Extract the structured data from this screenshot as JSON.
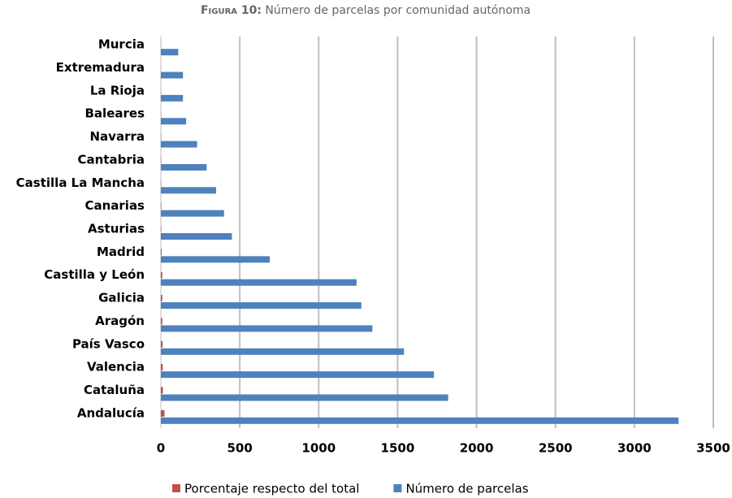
{
  "chart_data": {
    "type": "bar",
    "orientation": "horizontal",
    "title_label": "Figura 10:",
    "title": "Número de parcelas por comunidad autónoma",
    "categories": [
      "Andalucía",
      "Cataluña",
      "Valencia",
      "País Vasco",
      "Aragón",
      "Galicia",
      "Castilla y León",
      "Madrid",
      "Asturias",
      "Canarias",
      "Castilla La Mancha",
      "Cantabria",
      "Navarra",
      "Baleares",
      "La Rioja",
      "Extremadura",
      "Murcia"
    ],
    "series": [
      {
        "name": "Porcentaje respecto del total",
        "color": "#c0504d",
        "values": [
          23,
          13,
          12,
          11,
          9,
          9,
          9,
          5,
          3,
          3,
          2,
          2,
          2,
          1,
          1,
          1,
          1
        ]
      },
      {
        "name": "Número de parcelas",
        "color": "#4f81bd",
        "values": [
          3280,
          1820,
          1730,
          1540,
          1340,
          1270,
          1240,
          690,
          450,
          400,
          350,
          290,
          230,
          160,
          140,
          140,
          110
        ]
      }
    ],
    "xlim": [
      0,
      3500
    ],
    "xticks": [
      0,
      500,
      1000,
      1500,
      2000,
      2500,
      3000,
      3500
    ],
    "grid": true,
    "legend": "bottom"
  }
}
